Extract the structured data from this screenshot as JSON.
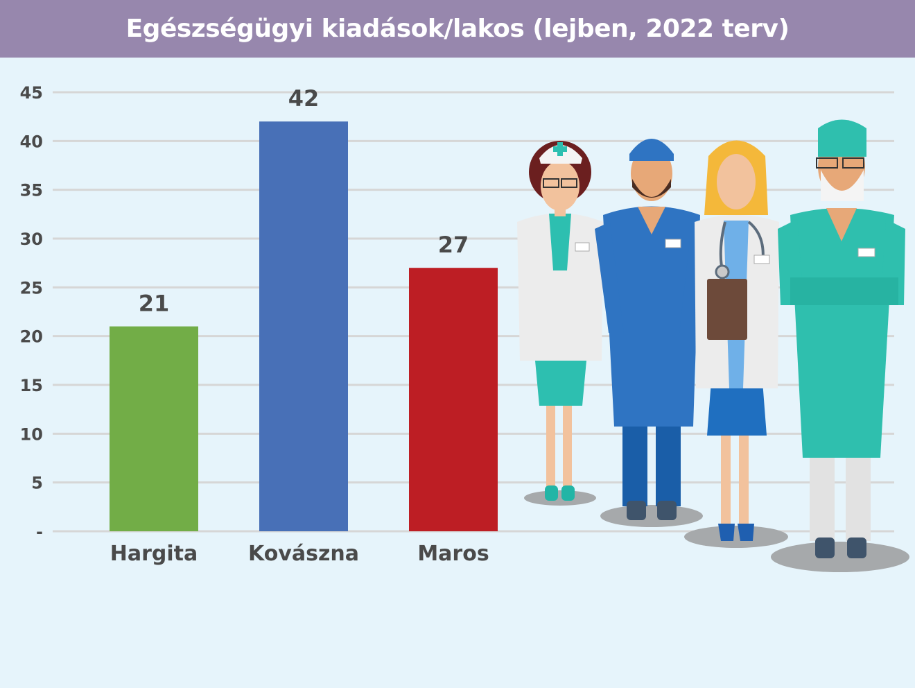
{
  "title": "Egészségügyi kiadások/lakos (lejben, 2022 terv)",
  "colors": {
    "title_bar": "#9787ad",
    "background": "#e6f4fb",
    "grid": "#d6d6d6"
  },
  "chart_data": {
    "type": "bar",
    "title": "Egészségügyi kiadások/lakos (lejben, 2022 terv)",
    "xlabel": "",
    "ylabel": "",
    "ylim": [
      0,
      45
    ],
    "y_ticks": [
      {
        "value": 0,
        "label": "-"
      },
      {
        "value": 5,
        "label": "5"
      },
      {
        "value": 10,
        "label": "10"
      },
      {
        "value": 15,
        "label": "15"
      },
      {
        "value": 20,
        "label": "20"
      },
      {
        "value": 25,
        "label": "25"
      },
      {
        "value": 30,
        "label": "30"
      },
      {
        "value": 35,
        "label": "35"
      },
      {
        "value": 40,
        "label": "40"
      },
      {
        "value": 45,
        "label": "45"
      }
    ],
    "grid": true,
    "categories": [
      "Hargita",
      "Kovászna",
      "Maros"
    ],
    "values": [
      21,
      42,
      27
    ],
    "value_labels": [
      "21",
      "42",
      "27"
    ],
    "bar_colors": [
      "#72ad47",
      "#4870b7",
      "#bd1e24"
    ]
  },
  "illustration": {
    "figures": [
      "nurse-icon",
      "doctor-blue-scrubs-icon",
      "doctor-stethoscope-icon",
      "surgeon-icon"
    ]
  }
}
